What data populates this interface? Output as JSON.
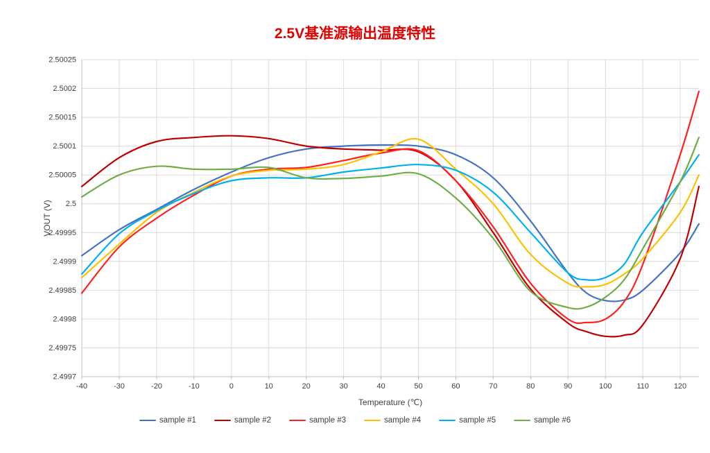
{
  "chart_data": {
    "type": "line",
    "title": "2.5V基准源输出温度特性",
    "title_color": "#E00000",
    "xlabel": "Temperature (℃)",
    "ylabel": "VOUT (V)",
    "xlim": [
      -40,
      125
    ],
    "ylim": [
      2.4997,
      2.50025
    ],
    "grid": true,
    "grid_color": "#DCDCDC",
    "axis_color": "#BFBFBF",
    "tick_text_color": "#404040",
    "legend_position": "bottom",
    "x_ticks": [
      -40,
      -30,
      -20,
      -10,
      0,
      10,
      20,
      30,
      40,
      50,
      60,
      70,
      80,
      90,
      100,
      110,
      120
    ],
    "y_ticks": [
      {
        "value": 2.4997,
        "label": "2.4997"
      },
      {
        "value": 2.49975,
        "label": "2.49975"
      },
      {
        "value": 2.4998,
        "label": "2.4998"
      },
      {
        "value": 2.49985,
        "label": "2.49985"
      },
      {
        "value": 2.4999,
        "label": "2.4999"
      },
      {
        "value": 2.49995,
        "label": "2.49995"
      },
      {
        "value": 2.5,
        "label": "2.5"
      },
      {
        "value": 2.50005,
        "label": "2.50005"
      },
      {
        "value": 2.5001,
        "label": "2.5001"
      },
      {
        "value": 2.50015,
        "label": "2.50015"
      },
      {
        "value": 2.5002,
        "label": "2.5002"
      },
      {
        "value": 2.50025,
        "label": "2.50025"
      }
    ],
    "x": [
      -40,
      -30,
      -20,
      -10,
      0,
      10,
      20,
      30,
      40,
      50,
      60,
      70,
      80,
      90,
      95,
      100,
      105,
      110,
      120,
      125
    ],
    "series": [
      {
        "name": "sample #1",
        "color": "#4472C4",
        "values": [
          2.49991,
          2.499955,
          2.49999,
          2.500025,
          2.500055,
          2.50008,
          2.500095,
          2.5001,
          2.500102,
          2.5001,
          2.500085,
          2.500045,
          2.49997,
          2.49988,
          2.499845,
          2.499832,
          2.499833,
          2.49985,
          2.499915,
          2.499965
        ]
      },
      {
        "name": "sample #2",
        "color": "#C00000",
        "values": [
          2.50003,
          2.50008,
          2.500108,
          2.500115,
          2.500118,
          2.500113,
          2.5001,
          2.500095,
          2.500093,
          2.50009,
          2.50004,
          2.49995,
          2.499852,
          2.499793,
          2.499778,
          2.49977,
          2.499772,
          2.49979,
          2.499905,
          2.50003
        ]
      },
      {
        "name": "sample #3",
        "color": "#FF2020",
        "values": [
          2.499845,
          2.499925,
          2.499975,
          2.500015,
          2.500048,
          2.50006,
          2.500063,
          2.500075,
          2.500088,
          2.500092,
          2.50004,
          2.49996,
          2.499862,
          2.4998,
          2.499794,
          2.4998,
          2.49983,
          2.499895,
          2.500085,
          2.500195
        ]
      },
      {
        "name": "sample #4",
        "color": "#FFC000",
        "values": [
          2.499872,
          2.49993,
          2.499985,
          2.50002,
          2.500048,
          2.500058,
          2.50006,
          2.500068,
          2.50009,
          2.500112,
          2.50006,
          2.5,
          2.499912,
          2.499862,
          2.499856,
          2.49986,
          2.499878,
          2.499905,
          2.499985,
          2.50005
        ]
      },
      {
        "name": "sample #5",
        "color": "#00B0F0",
        "values": [
          2.499878,
          2.499948,
          2.499988,
          2.500018,
          2.50004,
          2.500045,
          2.500045,
          2.500055,
          2.500062,
          2.500068,
          2.500058,
          2.50002,
          2.49995,
          2.49988,
          2.499868,
          2.499872,
          2.499895,
          2.49995,
          2.500038,
          2.500085
        ]
      },
      {
        "name": "sample #6",
        "color": "#70AD47",
        "values": [
          2.500012,
          2.50005,
          2.500065,
          2.50006,
          2.50006,
          2.500063,
          2.500045,
          2.500044,
          2.500048,
          2.500052,
          2.50001,
          2.49994,
          2.499848,
          2.49982,
          2.499821,
          2.499838,
          2.499868,
          2.499922,
          2.500038,
          2.500115
        ]
      }
    ]
  }
}
